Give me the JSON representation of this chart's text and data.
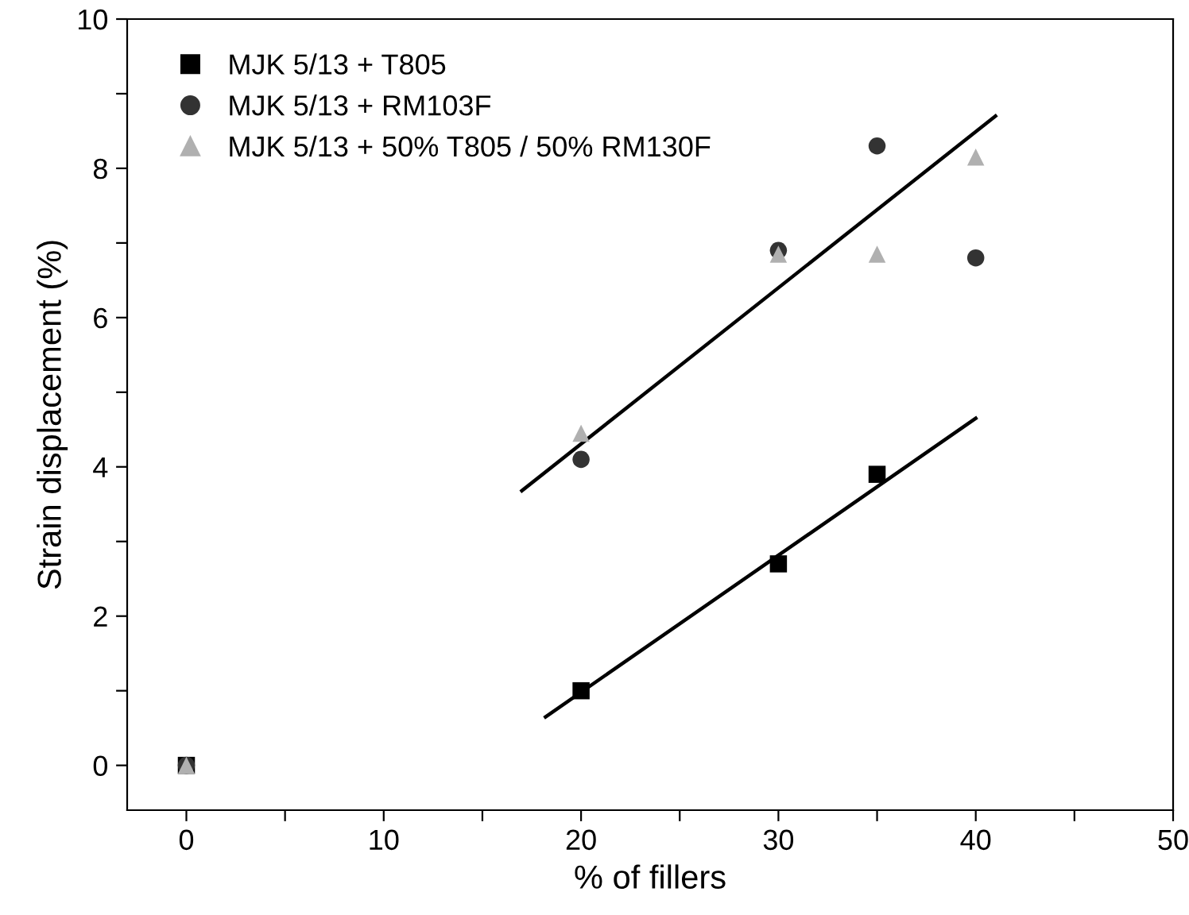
{
  "chart_data": {
    "type": "scatter",
    "xlabel": "% of fillers",
    "ylabel": "Strain displacement (%)",
    "xlim": [
      -3,
      50
    ],
    "ylim": [
      -0.6,
      10
    ],
    "xticks": [
      0,
      {
        "value": 5,
        "label": null
      },
      10,
      {
        "value": 15,
        "label": null
      },
      20,
      {
        "value": 25,
        "label": null
      },
      30,
      {
        "value": 35,
        "label": null
      },
      40,
      {
        "value": 45,
        "label": null
      },
      50
    ],
    "yticks": [
      0,
      {
        "value": 1,
        "label": null
      },
      2,
      {
        "value": 3,
        "label": null
      },
      4,
      {
        "value": 5,
        "label": null
      },
      6,
      {
        "value": 7,
        "label": null
      },
      8,
      {
        "value": 9,
        "label": null
      },
      10
    ],
    "grid": false,
    "legend": "top left",
    "series": [
      {
        "name": "MJK 5/13 + T805",
        "color": "#000000",
        "marker": "square",
        "x": [
          0,
          20,
          30,
          35
        ],
        "values": [
          0,
          1.0,
          2.7,
          3.9
        ]
      },
      {
        "name": "MJK 5/13 + RM103F",
        "color": "#333333",
        "marker": "circle",
        "x": [
          0,
          20,
          30,
          35,
          40
        ],
        "values": [
          0,
          4.1,
          6.9,
          8.3,
          6.8
        ]
      },
      {
        "name": "MJK 5/13 + 50% T805 / 50% RM130F",
        "color": "#b0b0b0",
        "marker": "triangle",
        "x": [
          0,
          20,
          30,
          35,
          40
        ],
        "values": [
          0,
          4.45,
          6.85,
          6.85,
          8.15
        ]
      },
      {
        "type": "line",
        "color": "#000000",
        "marker": "none",
        "x": [
          17.0,
          41.0
        ],
        "values": [
          3.68,
          8.7
        ]
      },
      {
        "type": "line",
        "color": "#000000",
        "marker": "none",
        "x": [
          18.2,
          40.0
        ],
        "values": [
          0.65,
          4.65
        ]
      }
    ]
  }
}
